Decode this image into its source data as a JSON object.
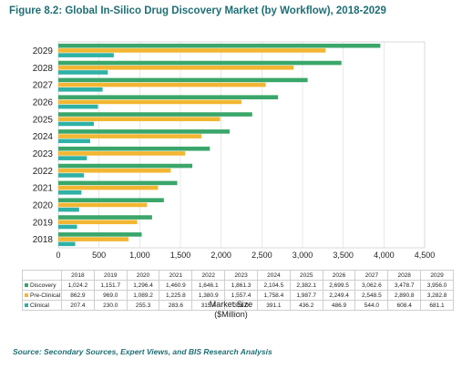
{
  "figure_title": "Figure 8.2: Global In-Silico Drug Discovery Market (by Workflow), 2018-2029",
  "source_note": "Source: Secondary Sources, Expert Views, and BIS Research Analysis",
  "x_unit_line1": "Market Size",
  "x_unit_line2": "($Million)",
  "colors": {
    "discovery": "#3aa66a",
    "preclinical": "#f2b632",
    "clinical": "#2fb1a6",
    "grid": "#d9d9d9"
  },
  "chart_data": {
    "type": "bar",
    "orientation": "horizontal",
    "title": "Figure 8.2: Global In-Silico Drug Discovery Market (by Workflow), 2018-2029",
    "categories": [
      "2018",
      "2019",
      "2020",
      "2021",
      "2022",
      "2023",
      "2024",
      "2025",
      "2026",
      "2027",
      "2028",
      "2029"
    ],
    "series": [
      {
        "name": "Discovery",
        "color": "#3aa66a",
        "values": [
          1024.2,
          1151.7,
          1296.4,
          1460.9,
          1646.1,
          1861.3,
          2104.5,
          2382.1,
          2699.5,
          3062.6,
          3478.7,
          3956.0
        ],
        "labels": [
          "1,024.2",
          "1,151.7",
          "1,296.4",
          "1,460.9",
          "1,646.1",
          "1,861.3",
          "2,104.5",
          "2,382.1",
          "2,699.5",
          "3,062.6",
          "3,478.7",
          "3,956.0"
        ]
      },
      {
        "name": "Pre-Clinical",
        "color": "#f2b632",
        "values": [
          862.9,
          969.0,
          1089.2,
          1225.8,
          1380.9,
          1557.4,
          1758.4,
          1987.7,
          2249.4,
          2548.5,
          2890.8,
          3282.8
        ],
        "labels": [
          "862.9",
          "969.0",
          "1,089.2",
          "1,225.8",
          "1,380.9",
          "1,557.4",
          "1,758.4",
          "1,987.7",
          "2,249.4",
          "2,548.5",
          "2,890.8",
          "3,282.8"
        ]
      },
      {
        "name": "Clinical",
        "color": "#2fb1a6",
        "values": [
          207.4,
          230.0,
          255.3,
          283.6,
          315.4,
          351.0,
          391.1,
          436.2,
          486.9,
          544.0,
          608.4,
          681.1
        ],
        "labels": [
          "207.4",
          "230.0",
          "255.3",
          "283.6",
          "315.4",
          "351.0",
          "391.1",
          "436.2",
          "486.9",
          "544.0",
          "608.4",
          "681.1"
        ]
      }
    ],
    "xlim": [
      0,
      4500
    ],
    "x_ticks": [
      0,
      500,
      1000,
      1500,
      2000,
      2500,
      3000,
      3500,
      4000,
      4500
    ],
    "x_tick_labels": [
      "0",
      "500",
      "1,000",
      "1,500",
      "2,000",
      "2,500",
      "3,000",
      "3,500",
      "4,000",
      "4,500"
    ],
    "xlabel": "Market Size ($Million)",
    "ylabel": "",
    "grid": true,
    "legend": "data-table-below"
  }
}
